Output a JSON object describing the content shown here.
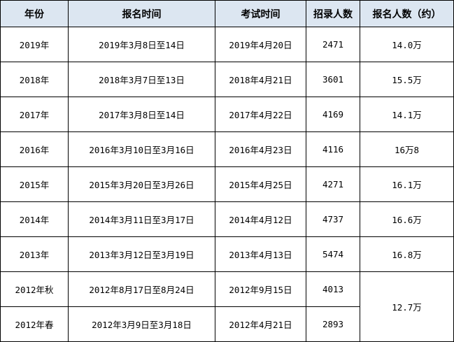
{
  "table": {
    "headers": [
      "年份",
      "报名时间",
      "考试时间",
      "招录人数",
      "报名人数（约）"
    ],
    "rows": [
      {
        "year": "2019年",
        "registration": "2019年3月8日至14日",
        "exam": "2019年4月20日",
        "hired": "2471",
        "applicants": "14.0万"
      },
      {
        "year": "2018年",
        "registration": "2018年3月7日至13日",
        "exam": "2018年4月21日",
        "hired": "3601",
        "applicants": "15.5万"
      },
      {
        "year": "2017年",
        "registration": "2017年3月8日至14日",
        "exam": "2017年4月22日",
        "hired": "4169",
        "applicants": "14.1万"
      },
      {
        "year": "2016年",
        "registration": "2016年3月10日至3月16日",
        "exam": "2016年4月23日",
        "hired": "4116",
        "applicants": "16万8"
      },
      {
        "year": "2015年",
        "registration": "2015年3月20日至3月26日",
        "exam": "2015年4月25日",
        "hired": "4271",
        "applicants": "16.1万"
      },
      {
        "year": "2014年",
        "registration": "2014年3月11日至3月17日",
        "exam": "2014年4月12日",
        "hired": "4737",
        "applicants": "16.6万"
      },
      {
        "year": "2013年",
        "registration": "2013年3月12日至3月19日",
        "exam": "2013年4月13日",
        "hired": "5474",
        "applicants": "16.8万"
      },
      {
        "year": "2012年秋",
        "registration": "2012年8月17日至8月24日",
        "exam": "2012年9月15日",
        "hired": "4013",
        "applicants": "12.7万"
      },
      {
        "year": "2012年春",
        "registration": "2012年3月9日至3月18日",
        "exam": "2012年4月21日",
        "hired": "2893"
      }
    ]
  }
}
